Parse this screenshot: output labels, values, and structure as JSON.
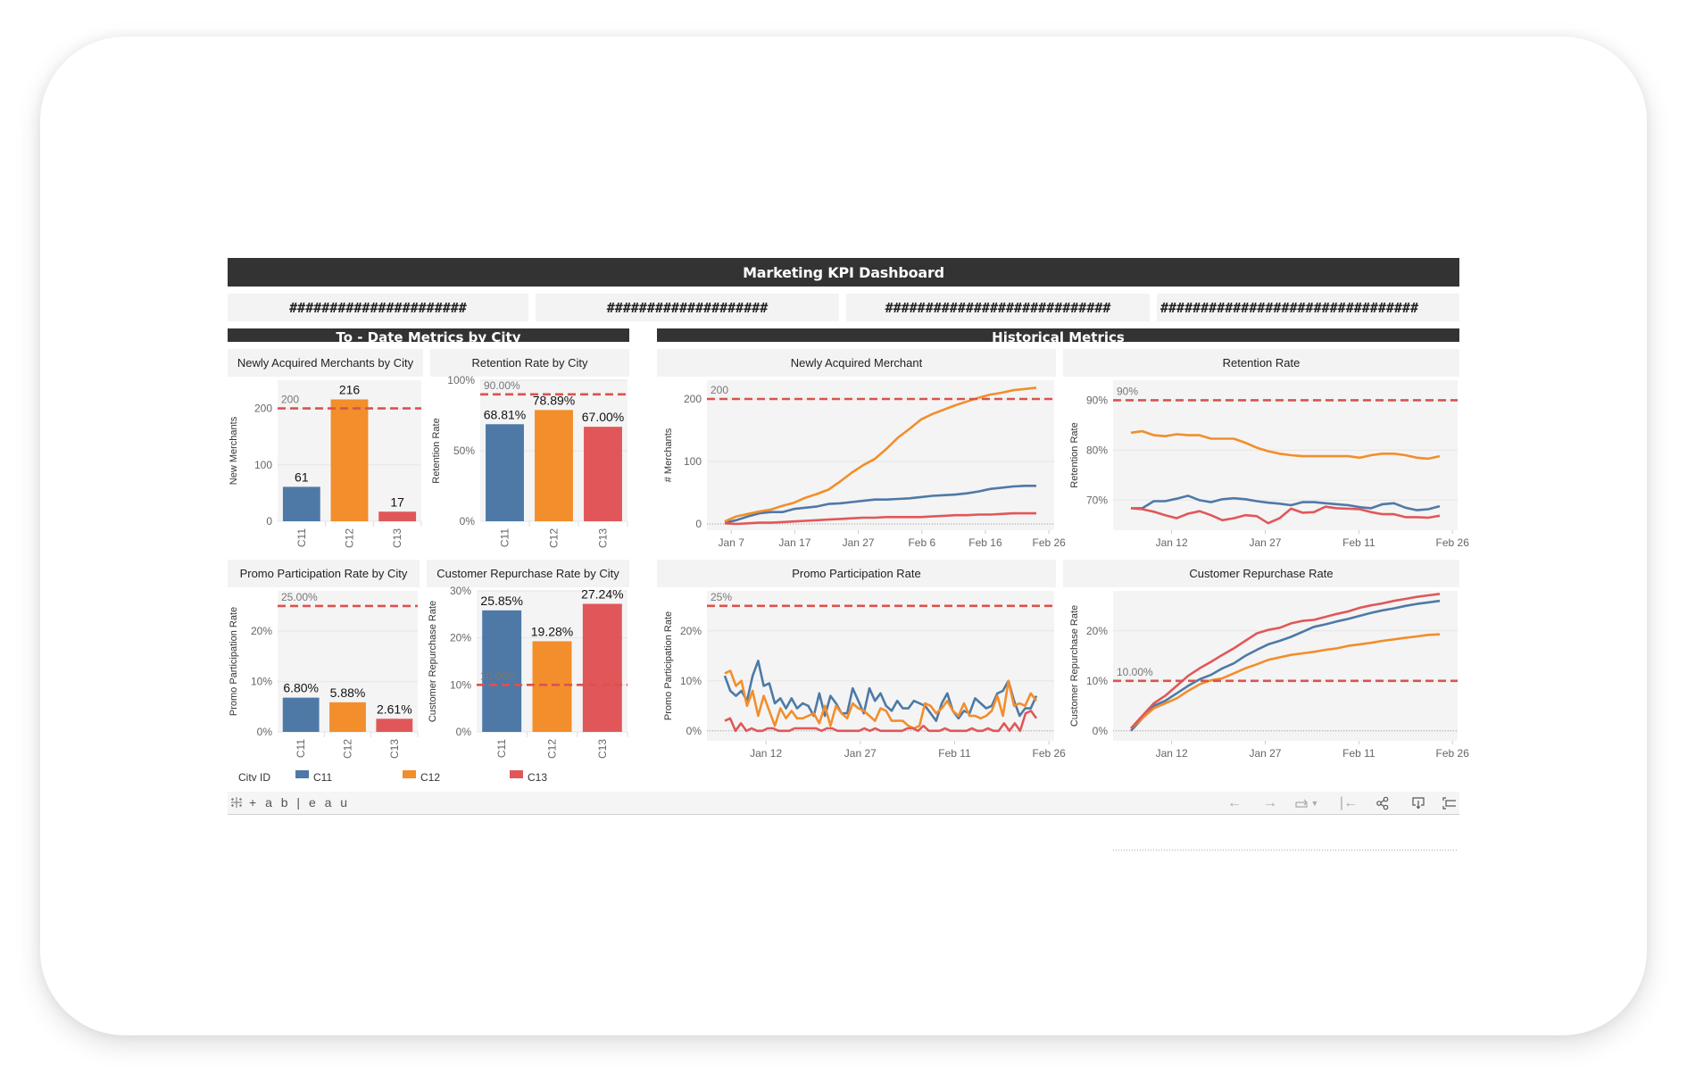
{
  "header": {
    "title": "Marketing KPI Dashboard"
  },
  "kpis": [
    {
      "value": "######################"
    },
    {
      "value": "####################"
    },
    {
      "value": "############################"
    },
    {
      "value": "################################"
    }
  ],
  "sections": {
    "left": "To - Date Metrics by City",
    "right": "Historical Metrics"
  },
  "colors": {
    "C11": "#4e79a7",
    "C12": "#f28e2b",
    "C13": "#e15759",
    "target": "#d9534f",
    "panel": "#f3f3f3",
    "header": "#333333"
  },
  "legend": {
    "title": "City ID",
    "items": [
      {
        "label": "C11",
        "color": "#4e79a7"
      },
      {
        "label": "C12",
        "color": "#f28e2b"
      },
      {
        "label": "C13",
        "color": "#e15759"
      }
    ]
  },
  "toolbar": {
    "logo": "+ a b | e a u",
    "buttons": [
      "undo",
      "redo",
      "revert",
      "revert-dropdown",
      "reset",
      "share",
      "download",
      "fullscreen"
    ]
  },
  "chart_data": [
    {
      "id": "new_merchants_by_city",
      "type": "bar",
      "title": "Newly Acquired Merchants by City",
      "xlabel": "",
      "ylabel": "New Merchants",
      "categories": [
        "C11",
        "C12",
        "C13"
      ],
      "values": [
        61,
        216,
        17
      ],
      "value_labels": [
        "61",
        "216",
        "17"
      ],
      "yticks": [
        "0",
        "100",
        "200"
      ],
      "ylim": [
        0,
        250
      ],
      "reference_line": {
        "value": 200,
        "label": "200"
      }
    },
    {
      "id": "retention_by_city",
      "type": "bar",
      "title": "Retention Rate by City",
      "ylabel": "Retention Rate",
      "categories": [
        "C11",
        "C12",
        "C13"
      ],
      "values": [
        68.81,
        78.89,
        67.0
      ],
      "value_labels": [
        "68.81%",
        "78.89%",
        "67.00%"
      ],
      "yticks": [
        "0%",
        "50%",
        "100%"
      ],
      "ylim": [
        0,
        100
      ],
      "reference_line": {
        "value": 90,
        "label": "90.00%"
      }
    },
    {
      "id": "promo_by_city",
      "type": "bar",
      "title": "Promo Participation Rate by City",
      "ylabel": "Promo Participation Rate",
      "categories": [
        "C11",
        "C12",
        "C13"
      ],
      "values": [
        6.8,
        5.88,
        2.61
      ],
      "value_labels": [
        "6.80%",
        "5.88%",
        "2.61%"
      ],
      "yticks": [
        "0%",
        "10%",
        "20%"
      ],
      "ylim": [
        0,
        28
      ],
      "reference_line": {
        "value": 25,
        "label": "25.00%"
      }
    },
    {
      "id": "repurchase_by_city",
      "type": "bar",
      "title": "Customer Repurchase Rate by City",
      "ylabel": "Customer Repurchase Rate",
      "categories": [
        "C11",
        "C12",
        "C13"
      ],
      "values": [
        25.85,
        19.28,
        27.24
      ],
      "value_labels": [
        "25.85%",
        "19.28%",
        "27.24%"
      ],
      "yticks": [
        "0%",
        "10%",
        "20%",
        "30%"
      ],
      "ylim": [
        0,
        30
      ],
      "reference_line": {
        "value": 10,
        "label": "10.00%"
      }
    },
    {
      "id": "new_merchants_hist",
      "type": "line",
      "title": "Newly Acquired Merchant",
      "ylabel": "# Merchants",
      "xticks": [
        "Jan 7",
        "Jan 17",
        "Jan 27",
        "Feb 6",
        "Feb 16",
        "Feb 26"
      ],
      "yticks": [
        "0",
        "100",
        "200"
      ],
      "ylim": [
        -10,
        230
      ],
      "reference_line": {
        "value": 200,
        "label": "200"
      },
      "series": [
        {
          "name": "C11",
          "values": [
            2,
            6,
            12,
            17,
            19,
            19,
            24,
            26,
            28,
            32,
            33,
            35,
            37,
            39,
            39,
            40,
            41,
            43,
            45,
            46,
            47,
            49,
            52,
            56,
            58,
            60,
            61,
            61
          ]
        },
        {
          "name": "C12",
          "values": [
            4,
            12,
            16,
            20,
            23,
            29,
            34,
            42,
            48,
            55,
            68,
            82,
            94,
            104,
            120,
            138,
            152,
            167,
            176,
            183,
            190,
            196,
            202,
            207,
            210,
            214,
            216,
            218
          ]
        },
        {
          "name": "C13",
          "values": [
            1,
            0,
            1,
            2,
            2,
            3,
            4,
            5,
            6,
            7,
            8,
            9,
            10,
            10,
            11,
            11,
            11,
            11,
            12,
            13,
            14,
            14,
            15,
            15,
            16,
            17,
            17,
            17
          ]
        }
      ]
    },
    {
      "id": "retention_hist",
      "type": "line",
      "title": "Retention Rate",
      "ylabel": "Retention Rate",
      "xticks": [
        "Jan 12",
        "Jan 27",
        "Feb 11",
        "Feb 26"
      ],
      "yticks": [
        "70%",
        "80%",
        "90%"
      ],
      "ylim": [
        64,
        94
      ],
      "reference_line": {
        "value": 90,
        "label": "90%"
      },
      "series": [
        {
          "name": "C11",
          "values": [
            68.4,
            68.4,
            69.8,
            69.8,
            70.3,
            70.9,
            70.0,
            69.6,
            70.2,
            70.4,
            70.2,
            69.8,
            69.5,
            69.3,
            69.0,
            69.6,
            69.6,
            69.4,
            69.2,
            69.0,
            68.6,
            68.4,
            69.2,
            69.4,
            68.5,
            68.0,
            68.2,
            68.8
          ]
        },
        {
          "name": "C12",
          "values": [
            83.5,
            83.8,
            83.0,
            82.8,
            83.2,
            83.0,
            83.0,
            82.3,
            82.3,
            82.3,
            81.5,
            80.5,
            79.8,
            79.3,
            79.0,
            78.8,
            78.8,
            78.8,
            78.8,
            78.8,
            78.5,
            79.0,
            79.3,
            79.3,
            79.0,
            78.5,
            78.3,
            78.8
          ]
        },
        {
          "name": "C13",
          "values": [
            68.4,
            68.2,
            67.7,
            67.0,
            66.4,
            67.3,
            67.8,
            67.0,
            66.0,
            66.4,
            67.0,
            66.8,
            65.4,
            66.4,
            68.3,
            67.5,
            67.6,
            68.7,
            68.4,
            68.3,
            68.2,
            67.6,
            67.2,
            67.2,
            66.6,
            66.6,
            66.5,
            66.9
          ]
        }
      ]
    },
    {
      "id": "promo_hist",
      "type": "line",
      "title": "Promo Participation Rate",
      "ylabel": "Promo Participation Rate",
      "xticks": [
        "Jan 12",
        "Jan 27",
        "Feb 11",
        "Feb 26"
      ],
      "yticks": [
        "0%",
        "10%",
        "20%"
      ],
      "ylim": [
        -2,
        28
      ],
      "reference_line": {
        "value": 25,
        "label": "25%"
      },
      "series": [
        {
          "name": "C11",
          "values": [
            11,
            8,
            7,
            8,
            6,
            11,
            14,
            9,
            9.5,
            5.5,
            6.5,
            4.5,
            6.5,
            4.5,
            5.5,
            5,
            3,
            7.5,
            3,
            7,
            5.5,
            3.5,
            3.5,
            8.5,
            6,
            3.5,
            8.5,
            6,
            7.5,
            5,
            4,
            6,
            4.5,
            4.5,
            6,
            5.5,
            5,
            3.5,
            2,
            5.5,
            7.5,
            4,
            2.5,
            4,
            3.5,
            6.5,
            5.5,
            4.5,
            5,
            7.5,
            8,
            10,
            6,
            3,
            4.5,
            4.5,
            7
          ]
        },
        {
          "name": "C12",
          "values": [
            11.5,
            12,
            9,
            10,
            5,
            8,
            3,
            7,
            4,
            1,
            4.5,
            2.5,
            4,
            2.5,
            2.5,
            3,
            3.5,
            1.5,
            5,
            1,
            5,
            3.5,
            2.5,
            5.5,
            4.5,
            4,
            3,
            2,
            4.5,
            4,
            2,
            2,
            2,
            1,
            0.5,
            1,
            5.5,
            5,
            3.5,
            4.5,
            6,
            4,
            3,
            5.5,
            3,
            3,
            2.5,
            3,
            4,
            7,
            3,
            10,
            5,
            5.5,
            5,
            7.5,
            6
          ]
        },
        {
          "name": "C13",
          "values": [
            2,
            2.5,
            0,
            1.5,
            0,
            0.5,
            0,
            0,
            0.5,
            0.5,
            0,
            0,
            0,
            0.5,
            0.5,
            0.5,
            0.5,
            0.5,
            0,
            0.5,
            0.5,
            0,
            0,
            0,
            0,
            0,
            0.5,
            0,
            0.5,
            0,
            0,
            0,
            0,
            0,
            0.5,
            0.5,
            0,
            1,
            0,
            0,
            0,
            0.5,
            0,
            0,
            0,
            0,
            0.5,
            0,
            0,
            0.5,
            0,
            0,
            1.5,
            0,
            1.5,
            0,
            3.5,
            4,
            2.5
          ]
        }
      ]
    },
    {
      "id": "repurchase_hist",
      "type": "line",
      "title": "Customer Repurchase Rate",
      "ylabel": "Customer Repurchase Rate",
      "xticks": [
        "Jan 12",
        "Jan 27",
        "Feb 11",
        "Feb 26"
      ],
      "yticks": [
        "0%",
        "10%",
        "20%"
      ],
      "ylim": [
        -2,
        28
      ],
      "reference_line": {
        "value": 10,
        "label": "10.00%"
      },
      "series": [
        {
          "name": "C11",
          "values": [
            0,
            2.5,
            5,
            6,
            7.5,
            9,
            10.3,
            11.2,
            12.5,
            13.5,
            15,
            16.2,
            17.3,
            18,
            18.8,
            19.8,
            20.8,
            21.3,
            21.9,
            22.4,
            23,
            23.6,
            24.1,
            24.5,
            25,
            25.4,
            25.7,
            26
          ]
        },
        {
          "name": "C12",
          "values": [
            0.5,
            2.5,
            4.5,
            5.5,
            6.5,
            8,
            9.3,
            10.1,
            10.5,
            11.5,
            12.5,
            13.3,
            14.2,
            14.7,
            15.2,
            15.5,
            15.8,
            16.2,
            16.5,
            17,
            17.3,
            17.6,
            18,
            18.3,
            18.6,
            18.9,
            19.2,
            19.3
          ]
        },
        {
          "name": "C13",
          "values": [
            0.5,
            3,
            5.5,
            7,
            9,
            11,
            12.5,
            13.8,
            15.2,
            16.5,
            18,
            19.5,
            20.2,
            20.6,
            21.5,
            22,
            22.2,
            22.8,
            23.4,
            23.9,
            24.6,
            25.1,
            25.5,
            26,
            26.4,
            26.8,
            27.1,
            27.4
          ]
        }
      ]
    }
  ]
}
